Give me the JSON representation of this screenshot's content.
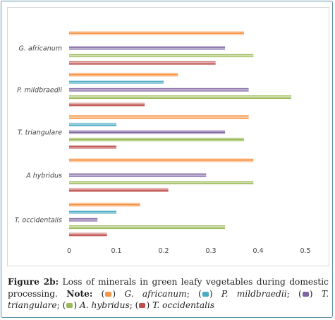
{
  "chart_data": {
    "type": "bar",
    "orientation": "horizontal",
    "categories": [
      "T. occidentalis",
      "A hybridus",
      "T. triangulare",
      "P. mildbraedii",
      "G. africanum"
    ],
    "series": [
      {
        "name": "G. africanum",
        "color": "#f79646",
        "values": [
          0.15,
          0.39,
          0.38,
          0.23,
          0.37
        ]
      },
      {
        "name": "P. mildbraedii",
        "color": "#4bacc6",
        "values": [
          0.1,
          null,
          0.1,
          0.2,
          null
        ]
      },
      {
        "name": "T. triangulare",
        "color": "#8064a2",
        "values": [
          0.06,
          0.29,
          0.33,
          0.38,
          0.33
        ]
      },
      {
        "name": "A. hybridus",
        "color": "#9bbb59",
        "values": [
          0.33,
          0.39,
          0.37,
          0.47,
          0.39
        ]
      },
      {
        "name": "T. occidentalis",
        "color": "#c0504d",
        "values": [
          0.08,
          0.21,
          0.1,
          0.16,
          0.31
        ]
      }
    ],
    "x_ticks": [
      "0",
      "0.1",
      "0.2",
      "0.3",
      "0.4",
      "0.5"
    ],
    "xlim": [
      0,
      0.5
    ],
    "grid": false,
    "bar_pattern": "horizontal-stripes"
  },
  "caption": {
    "figure_label": "Figure 2b:",
    "text": " Loss of minerals in green leafy vegetables during domestic processing.",
    "note_label": "Note:",
    "legend": [
      {
        "name": "G. africanum",
        "sep": ";"
      },
      {
        "name": "P. mildbraedii",
        "sep": ";"
      },
      {
        "name": "T. triangulare",
        "sep": ";"
      },
      {
        "name": "A. hybridus",
        "sep": ";"
      },
      {
        "name": "T. occidentalis",
        "sep": ""
      }
    ]
  }
}
